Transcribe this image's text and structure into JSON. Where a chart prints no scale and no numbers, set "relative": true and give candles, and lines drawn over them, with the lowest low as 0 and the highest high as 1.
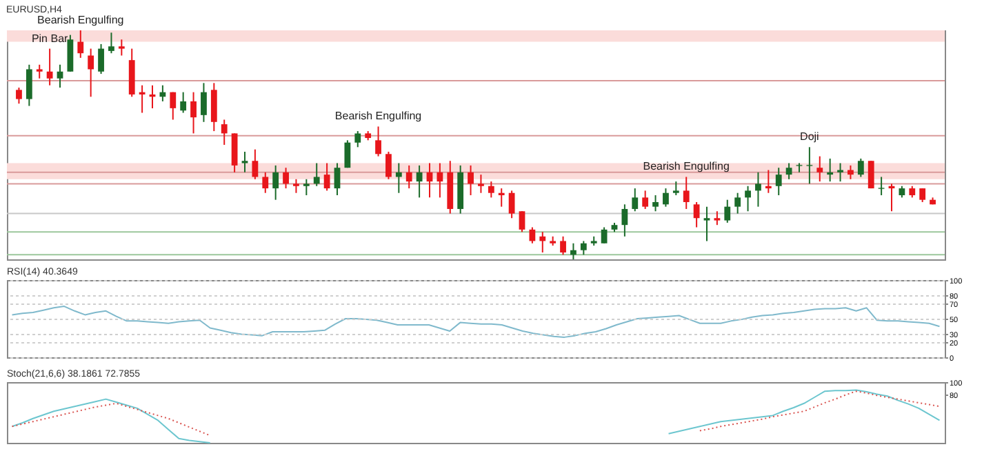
{
  "chart_data": [
    {
      "type": "candlestick",
      "title": "EURUSD,H4",
      "relative": true,
      "categories": [
        null,
        null,
        null,
        null,
        null,
        null,
        null,
        null,
        null,
        null,
        null,
        null,
        null,
        null,
        null,
        null,
        null,
        null,
        null,
        null,
        null,
        null,
        null,
        null,
        null,
        null,
        null,
        null,
        null,
        null,
        null,
        null,
        null,
        null,
        null,
        null,
        null,
        null,
        null,
        null,
        null,
        null,
        null,
        null,
        null,
        null,
        null,
        null,
        null,
        null,
        null,
        null,
        null,
        null,
        null,
        null,
        null,
        null,
        null,
        null,
        null,
        null,
        null,
        null,
        null,
        null,
        null,
        null,
        null,
        null,
        null,
        null,
        null,
        null,
        null,
        null,
        null,
        null,
        null,
        null,
        null,
        null,
        null,
        null,
        null,
        null,
        null,
        null,
        null,
        null
      ],
      "ohlc": [
        [
          0.74,
          0.75,
          0.68,
          0.7
        ],
        [
          0.7,
          0.85,
          0.67,
          0.83
        ],
        [
          0.83,
          0.85,
          0.79,
          0.82
        ],
        [
          0.82,
          0.92,
          0.76,
          0.79
        ],
        [
          0.79,
          0.85,
          0.75,
          0.82
        ],
        [
          0.82,
          0.98,
          0.82,
          0.96
        ],
        [
          0.95,
          1,
          0.88,
          0.9
        ],
        [
          0.89,
          0.92,
          0.71,
          0.83
        ],
        [
          0.82,
          0.94,
          0.81,
          0.92
        ],
        [
          0.91,
          0.99,
          0.9,
          0.93
        ],
        [
          0.93,
          0.96,
          0.89,
          0.92
        ],
        [
          0.87,
          0.92,
          0.71,
          0.72
        ],
        [
          0.73,
          0.76,
          0.64,
          0.72
        ],
        [
          0.72,
          0.76,
          0.66,
          0.71
        ],
        [
          0.71,
          0.76,
          0.69,
          0.73
        ],
        [
          0.73,
          0.73,
          0.61,
          0.66
        ],
        [
          0.65,
          0.73,
          0.64,
          0.69
        ],
        [
          0.69,
          0.73,
          0.55,
          0.62
        ],
        [
          0.63,
          0.77,
          0.6,
          0.73
        ],
        [
          0.74,
          0.77,
          0.56,
          0.6
        ],
        [
          0.59,
          0.61,
          0.5,
          0.55
        ],
        [
          0.55,
          0.55,
          0.38,
          0.41
        ],
        [
          0.42,
          0.47,
          0.38,
          0.43
        ],
        [
          0.43,
          0.48,
          0.35,
          0.36
        ],
        [
          0.36,
          0.38,
          0.29,
          0.31
        ],
        [
          0.31,
          0.41,
          0.26,
          0.38
        ],
        [
          0.38,
          0.4,
          0.31,
          0.33
        ],
        [
          0.33,
          0.35,
          0.29,
          0.32
        ],
        [
          0.32,
          0.35,
          0.28,
          0.33
        ],
        [
          0.33,
          0.42,
          0.32,
          0.36
        ],
        [
          0.37,
          0.42,
          0.3,
          0.31
        ],
        [
          0.31,
          0.42,
          0.28,
          0.4
        ],
        [
          0.4,
          0.52,
          0.4,
          0.51
        ],
        [
          0.51,
          0.56,
          0.49,
          0.55
        ],
        [
          0.55,
          0.56,
          0.52,
          0.53
        ],
        [
          0.52,
          0.58,
          0.45,
          0.46
        ],
        [
          0.46,
          0.47,
          0.35,
          0.36
        ],
        [
          0.36,
          0.42,
          0.29,
          0.38
        ],
        [
          0.38,
          0.41,
          0.31,
          0.34
        ],
        [
          0.34,
          0.41,
          0.27,
          0.38
        ],
        [
          0.38,
          0.42,
          0.27,
          0.34
        ],
        [
          0.38,
          0.42,
          0.27,
          0.34
        ],
        [
          0.38,
          0.43,
          0.2,
          0.22
        ],
        [
          0.22,
          0.41,
          0.2,
          0.38
        ],
        [
          0.38,
          0.41,
          0.28,
          0.33
        ],
        [
          0.33,
          0.37,
          0.29,
          0.32
        ],
        [
          0.32,
          0.34,
          0.27,
          0.29
        ],
        [
          0.29,
          0.31,
          0.23,
          0.28
        ],
        [
          0.29,
          0.3,
          0.18,
          0.2
        ],
        [
          0.21,
          0.21,
          0.12,
          0.13
        ],
        [
          0.13,
          0.14,
          0.07,
          0.08
        ],
        [
          0.1,
          0.12,
          0.03,
          0.08
        ],
        [
          0.08,
          0.1,
          0.06,
          0.07
        ],
        [
          0.08,
          0.1,
          0.02,
          0.03
        ],
        [
          0.02,
          0.07,
          0,
          0.04
        ],
        [
          0.04,
          0.08,
          0.02,
          0.07
        ],
        [
          0.07,
          0.1,
          0.06,
          0.08
        ],
        [
          0.07,
          0.14,
          0.07,
          0.13
        ],
        [
          0.13,
          0.16,
          0.12,
          0.15
        ],
        [
          0.15,
          0.24,
          0.1,
          0.22
        ],
        [
          0.22,
          0.31,
          0.21,
          0.27
        ],
        [
          0.27,
          0.3,
          0.22,
          0.23
        ],
        [
          0.23,
          0.28,
          0.21,
          0.25
        ],
        [
          0.24,
          0.31,
          0.23,
          0.29
        ],
        [
          0.29,
          0.34,
          0.28,
          0.3
        ],
        [
          0.3,
          0.36,
          0.22,
          0.25
        ],
        [
          0.24,
          0.25,
          0.14,
          0.18
        ],
        [
          0.17,
          0.23,
          0.08,
          0.18
        ],
        [
          0.18,
          0.21,
          0.15,
          0.17
        ],
        [
          0.17,
          0.26,
          0.16,
          0.23
        ],
        [
          0.23,
          0.29,
          0.2,
          0.27
        ],
        [
          0.27,
          0.32,
          0.21,
          0.3
        ],
        [
          0.3,
          0.38,
          0.23,
          0.33
        ],
        [
          0.32,
          0.39,
          0.29,
          0.31
        ],
        [
          0.32,
          0.4,
          0.28,
          0.37
        ],
        [
          0.37,
          0.42,
          0.35,
          0.4
        ],
        [
          0.41,
          0.42,
          0.38,
          0.41
        ],
        [
          0.41,
          0.49,
          0.33,
          0.41
        ],
        [
          0.4,
          0.45,
          0.34,
          0.38
        ],
        [
          0.37,
          0.44,
          0.34,
          0.38
        ],
        [
          0.38,
          0.42,
          0.34,
          0.39
        ],
        [
          0.39,
          0.41,
          0.35,
          0.37
        ],
        [
          0.37,
          0.44,
          0.36,
          0.43
        ],
        [
          0.43,
          0.43,
          0.31,
          0.31
        ],
        [
          0.31,
          0.36,
          0.28,
          0.31
        ],
        [
          0.32,
          0.33,
          0.21,
          0.31
        ],
        [
          0.28,
          0.32,
          0.27,
          0.31
        ],
        [
          0.31,
          0.32,
          0.27,
          0.28
        ],
        [
          0.31,
          0.31,
          0.25,
          0.26
        ],
        [
          0.26,
          0.27,
          0.24,
          0.24
        ]
      ],
      "colors": [
        "#e8161b",
        "#1b6b2a",
        "#e8161b",
        "#e8161b",
        "#1b6b2a",
        "#1b6b2a",
        "#e8161b",
        "#e8161b",
        "#1b6b2a",
        "#1b6b2a",
        "#e8161b",
        "#e8161b",
        "#e8161b",
        "#e8161b",
        "#1b6b2a",
        "#e8161b",
        "#1b6b2a",
        "#e8161b",
        "#1b6b2a",
        "#e8161b",
        "#e8161b",
        "#e8161b",
        "#1b6b2a",
        "#e8161b",
        "#e8161b",
        "#1b6b2a",
        "#e8161b",
        "#e8161b",
        "#1b6b2a",
        "#1b6b2a",
        "#e8161b",
        "#1b6b2a",
        "#1b6b2a",
        "#1b6b2a",
        "#e8161b",
        "#e8161b",
        "#e8161b",
        "#1b6b2a",
        "#e8161b",
        "#1b6b2a",
        "#e8161b",
        "#e8161b",
        "#e8161b",
        "#1b6b2a",
        "#e8161b",
        "#e8161b",
        "#e8161b",
        "#e8161b",
        "#e8161b",
        "#e8161b",
        "#e8161b",
        "#e8161b",
        "#e8161b",
        "#e8161b",
        "#1b6b2a",
        "#1b6b2a",
        "#1b6b2a",
        "#1b6b2a",
        "#1b6b2a",
        "#1b6b2a",
        "#1b6b2a",
        "#e8161b",
        "#1b6b2a",
        "#1b6b2a",
        "#1b6b2a",
        "#e8161b",
        "#e8161b",
        "#1b6b2a",
        "#e8161b",
        "#1b6b2a",
        "#1b6b2a",
        "#1b6b2a",
        "#1b6b2a",
        "#e8161b",
        "#1b6b2a",
        "#1b6b2a",
        "#1b6b2a",
        "#1b6b2a",
        "#e8161b",
        "#1b6b2a",
        "#1b6b2a",
        "#e8161b",
        "#1b6b2a",
        "#e8161b",
        "#1b6b2a",
        "#e8161b",
        "#1b6b2a",
        "#e8161b",
        "#e8161b",
        "#e8161b"
      ],
      "bands": [
        {
          "axis": "y",
          "from": 0.95,
          "to": 1.0,
          "color": "#fbdcda"
        },
        {
          "axis": "y",
          "from": 0.35,
          "to": 0.42,
          "color": "#fbdcda"
        }
      ],
      "ref_lines": [
        {
          "axis": "y",
          "value": 0.78,
          "color": "#d99a9a"
        },
        {
          "axis": "y",
          "value": 0.54,
          "color": "#d99a9a"
        },
        {
          "axis": "y",
          "value": 0.38,
          "color": "#d99a9a"
        },
        {
          "axis": "y",
          "value": 0.33,
          "color": "#d99a9a"
        },
        {
          "axis": "y",
          "value": 0.2,
          "color": "#c8c8c8"
        },
        {
          "axis": "y",
          "value": 0.12,
          "color": "#9cc79c"
        },
        {
          "axis": "y",
          "value": 0.02,
          "color": "#9cc79c"
        }
      ],
      "annotations": [
        {
          "text": "Bearish Engulfing",
          "y": 1
        },
        {
          "text": "Pin Bar",
          "y": 0.92
        },
        {
          "text": "Bearish Engulfing",
          "y": 0.58
        },
        {
          "text": "Bearish Engulfing",
          "y": 0.36
        },
        {
          "text": "Doji",
          "y": 0.49
        }
      ]
    },
    {
      "type": "line",
      "title": "RSI(14) 40.3649",
      "ylim": [
        0,
        100
      ],
      "yticks": [
        0,
        20,
        30,
        50,
        70,
        80,
        100
      ],
      "grid": "y",
      "tick_labels": "y",
      "categories": [
        null,
        null,
        null,
        null,
        null,
        null,
        null,
        null,
        null,
        null,
        null,
        null,
        null,
        null,
        null,
        null,
        null,
        null,
        null,
        null,
        null,
        null,
        null,
        null,
        null,
        null,
        null,
        null,
        null,
        null,
        null,
        null,
        null,
        null,
        null,
        null,
        null,
        null,
        null,
        null,
        null,
        null,
        null,
        null,
        null,
        null,
        null,
        null,
        null,
        null,
        null,
        null,
        null,
        null,
        null,
        null,
        null,
        null,
        null,
        null,
        null,
        null,
        null,
        null,
        null,
        null,
        null,
        null,
        null,
        null,
        null,
        null,
        null,
        null,
        null,
        null,
        null,
        null,
        null,
        null,
        null,
        null,
        null,
        null,
        null,
        null,
        null,
        null,
        null,
        null
      ],
      "series": [
        {
          "color": "#7fb9cc",
          "values": [
            55,
            57,
            58,
            61,
            64,
            66,
            60,
            55,
            58,
            60,
            53,
            47,
            47,
            46,
            45,
            44,
            46,
            47,
            48,
            38,
            35,
            32,
            30,
            29,
            28,
            33,
            33,
            33,
            33,
            34,
            35,
            43,
            50,
            50,
            49,
            48,
            45,
            42,
            42,
            42,
            42,
            38,
            34,
            45,
            44,
            43,
            43,
            42,
            38,
            34,
            31,
            29,
            27,
            26,
            28,
            31,
            33,
            37,
            42,
            46,
            50,
            51,
            52,
            53,
            54,
            49,
            44,
            44,
            44,
            47,
            49,
            52,
            54,
            55,
            57,
            58,
            60,
            62,
            63,
            63,
            64,
            60,
            64,
            48,
            47,
            47,
            46,
            45,
            44,
            40
          ]
        }
      ]
    },
    {
      "type": "line",
      "title": "Stoch(21,6,6) 38.1861 72.7855",
      "ylim": [
        0,
        100
      ],
      "yticks": [
        80,
        100
      ],
      "tick_labels": "y",
      "categories": [
        null,
        null,
        null,
        null,
        null,
        null,
        null,
        null,
        null,
        null,
        null,
        null,
        null,
        null,
        null,
        null,
        null,
        null,
        null,
        null,
        null,
        null,
        null,
        null,
        null,
        null,
        null,
        null,
        null,
        null,
        null,
        null,
        null,
        null,
        null,
        null,
        null,
        null,
        null,
        null,
        null,
        null,
        null,
        null,
        null,
        null,
        null,
        null,
        null,
        null,
        null,
        null,
        null,
        null,
        null,
        null,
        null,
        null,
        null,
        null,
        null,
        null,
        null,
        null,
        null,
        null,
        null,
        null,
        null,
        null,
        null,
        null,
        null,
        null,
        null,
        null,
        null,
        null,
        null,
        null,
        null,
        null,
        null,
        null,
        null,
        null,
        null,
        null,
        null,
        null
      ],
      "series": [
        {
          "color": "#6cc6cf",
          "line_style": "solid",
          "values": [
            27,
            33,
            40,
            46,
            52,
            56,
            60,
            64,
            68,
            72,
            67,
            62,
            57,
            47,
            37,
            22,
            7,
            4,
            2,
            0,
            null,
            null,
            null,
            null,
            null,
            null,
            null,
            null,
            null,
            null,
            null,
            null,
            null,
            null,
            null,
            null,
            null,
            null,
            null,
            null,
            null,
            null,
            null,
            null,
            null,
            null,
            null,
            null,
            null,
            null,
            null,
            null,
            null,
            null,
            null,
            null,
            null,
            null,
            null,
            null,
            null,
            null,
            null,
            15,
            19,
            23,
            27,
            31,
            35,
            37,
            39,
            41,
            43,
            45,
            52,
            58,
            65,
            75,
            85,
            86,
            86,
            87,
            84,
            80,
            77,
            70,
            64,
            57,
            47,
            37
          ]
        },
        {
          "color": "#d9534f",
          "line_style": "dotted",
          "values": [
            27,
            31,
            35,
            39,
            43,
            47,
            51,
            55,
            59,
            62,
            65,
            60,
            55,
            50,
            45,
            40,
            33,
            26,
            19,
            12,
            null,
            null,
            null,
            null,
            null,
            null,
            null,
            null,
            null,
            null,
            null,
            null,
            null,
            null,
            null,
            null,
            null,
            null,
            null,
            null,
            null,
            null,
            null,
            null,
            null,
            null,
            null,
            null,
            null,
            null,
            null,
            null,
            null,
            null,
            null,
            null,
            null,
            null,
            null,
            null,
            null,
            null,
            null,
            null,
            null,
            null,
            20,
            23,
            27,
            30,
            33,
            36,
            39,
            43,
            46,
            49,
            52,
            59,
            66,
            72,
            79,
            85,
            82,
            78,
            75,
            72,
            69,
            66,
            63,
            60
          ]
        }
      ]
    }
  ]
}
